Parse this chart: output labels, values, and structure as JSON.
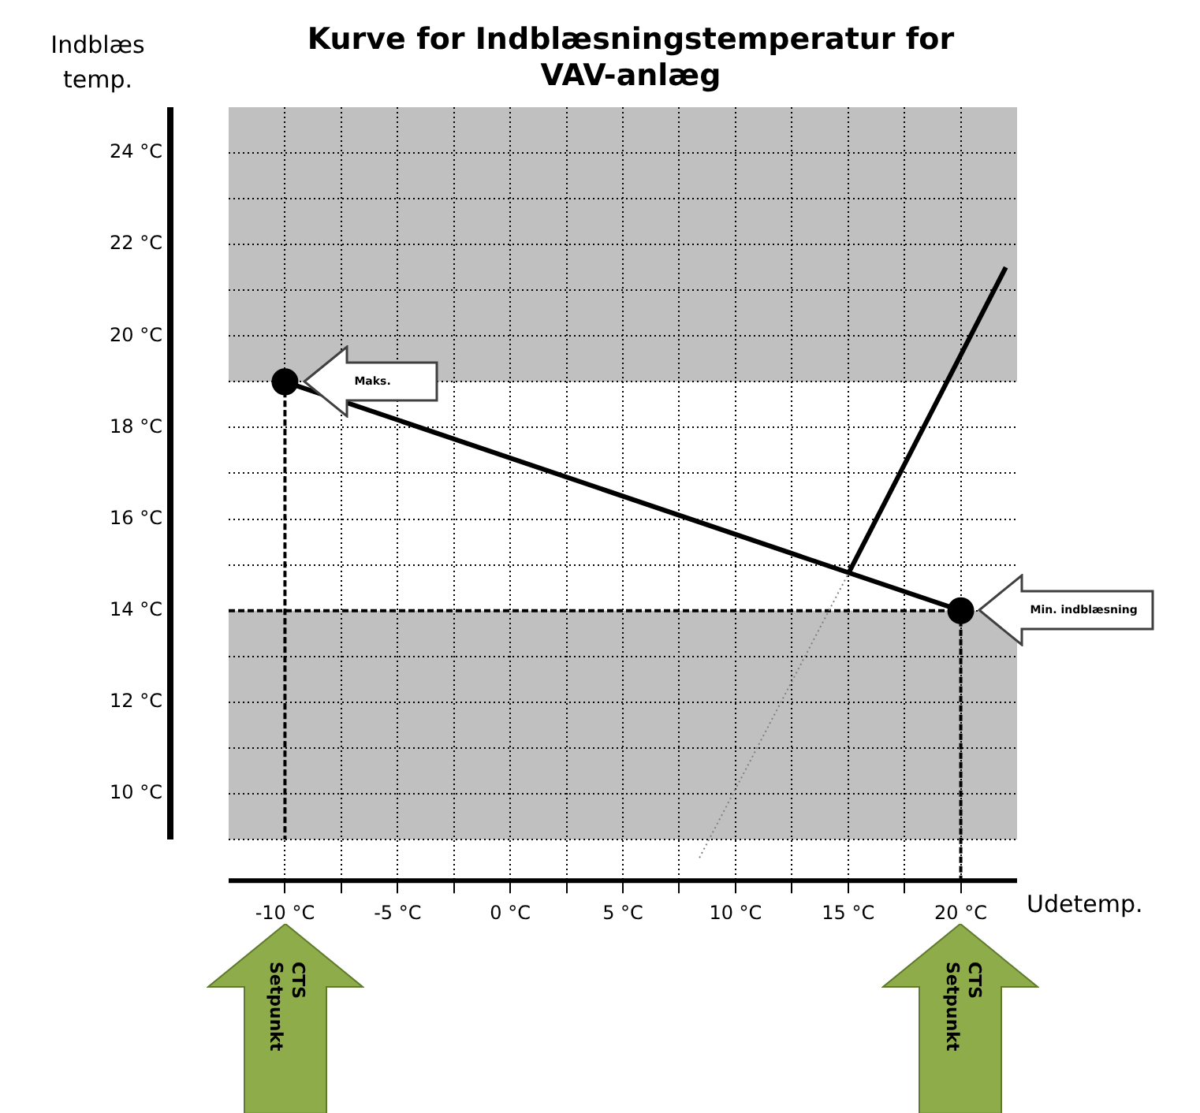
{
  "chart_data": {
    "type": "line",
    "title": "Kurve for Indblæsningstemperatur for VAV-anlæg",
    "xlabel": "Udetemp.",
    "ylabel": "Indblæs temp.",
    "xlim": [
      -12.5,
      22.5
    ],
    "xticks": [
      {
        "value": -10,
        "label": "-10 °C"
      },
      {
        "value": -7.5,
        "label": null
      },
      {
        "value": -5,
        "label": "-5 °C"
      },
      {
        "value": -2.5,
        "label": null
      },
      {
        "value": 0,
        "label": "0 °C"
      },
      {
        "value": 2.5,
        "label": null
      },
      {
        "value": 5,
        "label": "5 °C"
      },
      {
        "value": 7.5,
        "label": null
      },
      {
        "value": 10,
        "label": "10 °C"
      },
      {
        "value": 12.5,
        "label": null
      },
      {
        "value": 15,
        "label": "15 °C"
      },
      {
        "value": 17.5,
        "label": null
      },
      {
        "value": 20,
        "label": "20 °C"
      }
    ],
    "ylim": [
      8.1,
      25
    ],
    "yticks": [
      {
        "value": 9,
        "label": null
      },
      {
        "value": 10,
        "label": "10 °C"
      },
      {
        "value": 11,
        "label": null
      },
      {
        "value": 12,
        "label": "12 °C"
      },
      {
        "value": 13,
        "label": null
      },
      {
        "value": 14,
        "label": "14 °C"
      },
      {
        "value": 15,
        "label": null
      },
      {
        "value": 16,
        "label": "16 °C"
      },
      {
        "value": 17,
        "label": null
      },
      {
        "value": 18,
        "label": "18 °C"
      },
      {
        "value": 19,
        "label": null
      },
      {
        "value": 20,
        "label": "20 °C"
      },
      {
        "value": 21,
        "label": null
      },
      {
        "value": 22,
        "label": "22 °C"
      },
      {
        "value": 23,
        "label": null
      },
      {
        "value": 24,
        "label": "24 °C"
      }
    ],
    "grid": true,
    "legend": false,
    "series": [
      {
        "color": "#000000",
        "x": [
          -10,
          20
        ],
        "values": [
          19,
          14
        ],
        "marker": "circle",
        "line_style": "solid"
      },
      {
        "color": "#000000",
        "x": [
          15,
          22
        ],
        "values": [
          14.8,
          21.5
        ],
        "marker": "none",
        "line_style": "solid"
      },
      {
        "color": "#808080",
        "x": [
          8.4,
          15
        ],
        "values": [
          8.6,
          14.8
        ],
        "marker": "none",
        "line_style": "dotted"
      },
      {
        "color": "#000000",
        "x": [
          -10,
          -10
        ],
        "values": [
          19,
          9
        ],
        "marker": "none",
        "line_style": "dashed"
      },
      {
        "color": "#000000",
        "x": [
          -12.5,
          20
        ],
        "values": [
          14,
          14
        ],
        "marker": "none",
        "line_style": "dashed"
      },
      {
        "color": "#000000",
        "x": [
          20,
          20
        ],
        "values": [
          14,
          8.1
        ],
        "marker": "none",
        "line_style": "dashed"
      }
    ],
    "bands": [
      {
        "axis": "y",
        "from": 19,
        "to": 25,
        "color": "#c0c0c0"
      },
      {
        "axis": "y",
        "from": 9,
        "to": 14,
        "color": "#c0c0c0"
      }
    ],
    "annotations": [
      "Maks.",
      "Min. indblæsning",
      "CTS Setpunkt",
      "CTS Setpunkt"
    ]
  }
}
